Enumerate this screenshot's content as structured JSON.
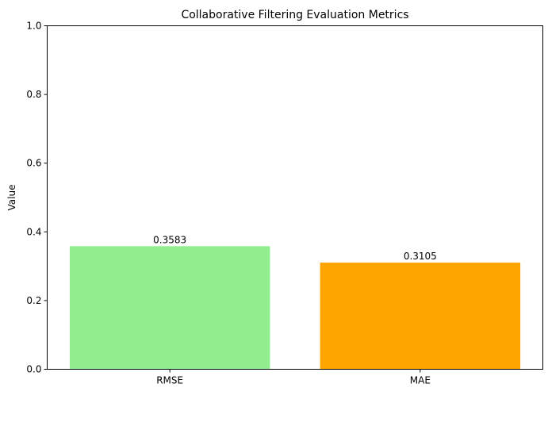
{
  "chart_data": {
    "type": "bar",
    "title": "Collaborative Filtering Evaluation Metrics",
    "xlabel": "",
    "ylabel": "Value",
    "categories": [
      "RMSE",
      "MAE"
    ],
    "values": [
      0.3583,
      0.3105
    ],
    "value_labels": [
      "0.3583",
      "0.3105"
    ],
    "colors": [
      "#90ee90",
      "#ffa500"
    ],
    "ylim": [
      0,
      1.0
    ],
    "yticks": [
      0.0,
      0.2,
      0.4,
      0.6,
      0.8,
      1.0
    ],
    "ytick_labels": [
      "0.0",
      "0.2",
      "0.4",
      "0.6",
      "0.8",
      "1.0"
    ],
    "grid": false,
    "legend": "none"
  }
}
